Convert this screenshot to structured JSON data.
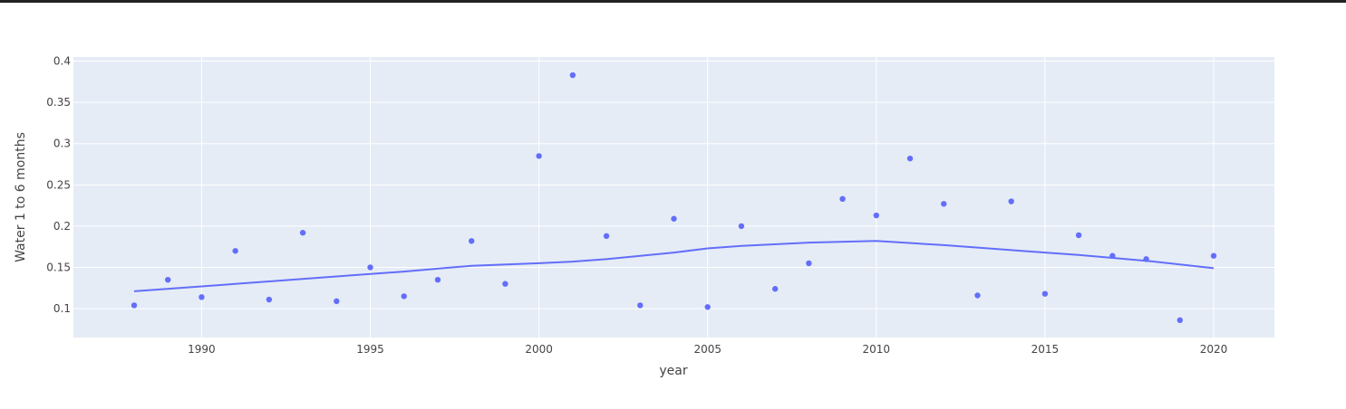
{
  "chart_data": {
    "type": "scatter",
    "title": "",
    "xlabel": "year",
    "ylabel": "Water 1 to 6 months",
    "xlim": [
      1986.2,
      2021.8
    ],
    "ylim": [
      0.065,
      0.405
    ],
    "grid": true,
    "x_ticks": [
      1990,
      1995,
      2000,
      2005,
      2010,
      2015,
      2020
    ],
    "y_ticks": [
      0.1,
      0.15,
      0.2,
      0.25,
      0.3,
      0.35,
      0.4
    ],
    "colors": {
      "marker": "#636efa",
      "line": "#636efa",
      "plot_bg": "#e5ecf6",
      "grid": "#ffffff"
    },
    "series": [
      {
        "mode": "markers",
        "x": [
          1988,
          1989,
          1990,
          1991,
          1992,
          1993,
          1994,
          1995,
          1996,
          1997,
          1998,
          1999,
          2000,
          2001,
          2002,
          2003,
          2004,
          2005,
          2006,
          2007,
          2008,
          2009,
          2010,
          2011,
          2012,
          2013,
          2014,
          2015,
          2016,
          2017,
          2018,
          2019,
          2020
        ],
        "y": [
          0.104,
          0.135,
          0.114,
          0.17,
          0.111,
          0.192,
          0.109,
          0.15,
          0.115,
          0.135,
          0.182,
          0.13,
          0.285,
          0.383,
          0.188,
          0.104,
          0.209,
          0.102,
          0.2,
          0.124,
          0.155,
          0.233,
          0.213,
          0.282,
          0.227,
          0.116,
          0.23,
          0.118,
          0.189,
          0.164,
          0.16,
          0.086,
          0.164
        ]
      },
      {
        "mode": "lines",
        "x": [
          1988,
          1990,
          1992,
          1994,
          1996,
          1998,
          2000,
          2001,
          2002,
          2004,
          2005,
          2006,
          2008,
          2010,
          2012,
          2014,
          2015,
          2016,
          2018,
          2020
        ],
        "y": [
          0.121,
          0.127,
          0.133,
          0.139,
          0.145,
          0.152,
          0.155,
          0.157,
          0.16,
          0.168,
          0.173,
          0.176,
          0.18,
          0.182,
          0.177,
          0.171,
          0.168,
          0.165,
          0.158,
          0.149
        ]
      }
    ]
  }
}
